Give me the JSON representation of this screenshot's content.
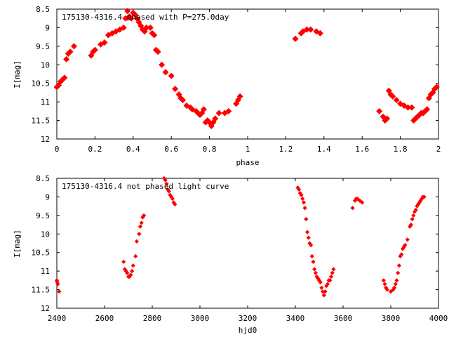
{
  "chart_data": [
    {
      "type": "scatter",
      "title": "175130-4316.4 phased with P=275.0day",
      "xlabel": "phase",
      "ylabel": "I[mag]",
      "xlim": [
        0,
        2
      ],
      "ylim": [
        8.5,
        12
      ],
      "y_inverted": true,
      "grid": false,
      "marker_color": "#ff0000",
      "x_ticks": [
        "0",
        "0.2",
        "0.4",
        "0.6",
        "0.8",
        "1",
        "1.2",
        "1.4",
        "1.6",
        "1.8",
        "2"
      ],
      "y_ticks": [
        "8.5",
        "9",
        "9.5",
        "10",
        "10.5",
        "11",
        "11.5",
        "12"
      ],
      "series": [
        {
          "x": [
            0.0,
            0.01,
            0.02,
            0.03,
            0.04,
            0.05,
            0.06,
            0.07,
            0.09,
            0.18,
            0.19,
            0.2,
            0.23,
            0.25,
            0.27,
            0.29,
            0.31,
            0.33,
            0.35,
            0.36,
            0.37,
            0.38,
            0.39,
            0.4,
            0.41,
            0.42,
            0.43,
            0.44,
            0.45,
            0.46,
            0.47,
            0.49,
            0.5,
            0.51,
            0.52,
            0.53,
            0.55,
            0.57,
            0.6,
            0.62,
            0.64,
            0.65,
            0.66,
            0.68,
            0.7,
            0.71,
            0.73,
            0.74,
            0.75,
            0.76,
            0.77,
            0.78,
            0.79,
            0.8,
            0.81,
            0.82,
            0.83,
            0.85,
            0.88,
            0.9,
            0.94,
            0.95,
            0.96,
            1.25,
            1.28,
            1.29,
            1.31,
            1.33,
            1.36,
            1.38,
            1.69,
            1.71,
            1.72,
            1.73,
            1.74,
            1.75,
            1.76,
            1.78,
            1.8,
            1.82,
            1.84,
            1.86,
            1.87,
            1.88,
            1.89,
            1.9,
            1.91,
            1.92,
            1.93,
            1.94,
            1.95,
            1.96,
            1.97,
            1.98,
            1.99
          ],
          "y": [
            10.6,
            10.55,
            10.45,
            10.4,
            10.35,
            9.85,
            9.7,
            9.65,
            9.5,
            9.75,
            9.65,
            9.6,
            9.45,
            9.4,
            9.2,
            9.15,
            9.1,
            9.05,
            9.0,
            8.75,
            8.55,
            8.7,
            8.75,
            8.6,
            8.65,
            8.75,
            8.85,
            8.95,
            9.05,
            9.1,
            9.0,
            9.0,
            9.15,
            9.2,
            9.6,
            9.65,
            10.0,
            10.2,
            10.3,
            10.65,
            10.8,
            10.9,
            10.95,
            11.1,
            11.15,
            11.2,
            11.25,
            11.3,
            11.35,
            11.3,
            11.2,
            11.55,
            11.5,
            11.55,
            11.65,
            11.55,
            11.45,
            11.3,
            11.3,
            11.25,
            11.05,
            10.95,
            10.85,
            9.3,
            9.15,
            9.1,
            9.05,
            9.05,
            9.1,
            9.15,
            11.25,
            11.4,
            11.5,
            11.45,
            10.7,
            10.8,
            10.85,
            10.95,
            11.05,
            11.1,
            11.15,
            11.15,
            11.5,
            11.45,
            11.4,
            11.35,
            11.3,
            11.3,
            11.25,
            11.2,
            10.9,
            10.8,
            10.75,
            10.65,
            10.6
          ]
        }
      ]
    },
    {
      "type": "scatter",
      "title": "175130-4316.4 not phased light curve",
      "xlabel": "hjd0",
      "ylabel": "I[mag]",
      "xlim": [
        2400,
        4000
      ],
      "ylim": [
        8.5,
        12
      ],
      "y_inverted": true,
      "grid": false,
      "marker_color": "#ff0000",
      "x_ticks": [
        "2400",
        "2600",
        "2800",
        "3000",
        "3200",
        "3400",
        "3600",
        "3800",
        "4000"
      ],
      "y_ticks": [
        "8.5",
        "9",
        "9.5",
        "10",
        "10.5",
        "11",
        "11.5",
        "12"
      ],
      "series": [
        {
          "x": [
            2400,
            2402,
            2404,
            2410,
            2680,
            2685,
            2690,
            2695,
            2700,
            2705,
            2710,
            2715,
            2720,
            2730,
            2735,
            2745,
            2750,
            2755,
            2760,
            2765,
            2850,
            2855,
            2860,
            2865,
            2870,
            2875,
            2880,
            2885,
            2890,
            2895,
            3410,
            3415,
            3420,
            3425,
            3430,
            3435,
            3440,
            3445,
            3450,
            3455,
            3460,
            3465,
            3470,
            3475,
            3480,
            3485,
            3490,
            3495,
            3500,
            3505,
            3510,
            3515,
            3520,
            3525,
            3530,
            3535,
            3540,
            3545,
            3550,
            3555,
            3560,
            3640,
            3650,
            3655,
            3660,
            3670,
            3680,
            3770,
            3775,
            3780,
            3785,
            3800,
            3810,
            3815,
            3820,
            3825,
            3830,
            3835,
            3840,
            3845,
            3850,
            3855,
            3860,
            3870,
            3880,
            3885,
            3890,
            3895,
            3900,
            3905,
            3910,
            3915,
            3920,
            3925,
            3930,
            3935,
            3940
          ],
          "y": [
            11.25,
            11.3,
            11.35,
            11.55,
            10.75,
            10.95,
            11.0,
            11.05,
            11.15,
            11.15,
            11.1,
            11.0,
            10.85,
            10.6,
            10.2,
            10.0,
            9.8,
            9.7,
            9.55,
            9.5,
            8.5,
            8.55,
            8.65,
            8.8,
            8.85,
            8.95,
            9.0,
            9.05,
            9.15,
            9.2,
            8.75,
            8.8,
            8.9,
            8.95,
            9.05,
            9.15,
            9.3,
            9.6,
            9.95,
            10.1,
            10.25,
            10.3,
            10.6,
            10.75,
            10.95,
            11.05,
            11.15,
            11.2,
            11.25,
            11.3,
            11.45,
            11.55,
            11.65,
            11.55,
            11.4,
            11.35,
            11.25,
            11.25,
            11.15,
            11.05,
            10.95,
            9.3,
            9.1,
            9.05,
            9.05,
            9.1,
            9.15,
            11.25,
            11.35,
            11.45,
            11.5,
            11.55,
            11.5,
            11.45,
            11.35,
            11.25,
            11.05,
            10.85,
            10.6,
            10.55,
            10.4,
            10.35,
            10.3,
            10.15,
            9.8,
            9.75,
            9.6,
            9.5,
            9.4,
            9.35,
            9.25,
            9.2,
            9.15,
            9.1,
            9.05,
            9.0,
            9.0
          ]
        }
      ]
    }
  ]
}
